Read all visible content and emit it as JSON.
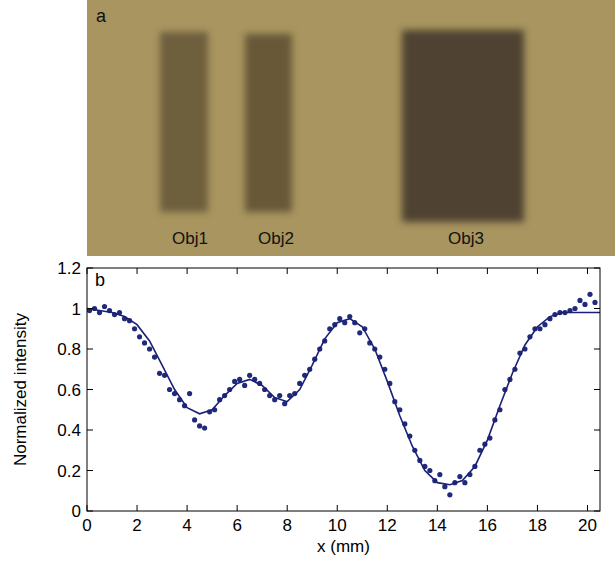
{
  "chart_data": [
    {
      "type": "image",
      "panel": "a",
      "color": "#a8955f",
      "labels": [
        "Obj1",
        "Obj2",
        "Obj3"
      ]
    },
    {
      "type": "scatter",
      "panel": "b",
      "xlabel": "x (mm)",
      "ylabel": "Normalized intensity",
      "xlim": [
        0,
        20.5
      ],
      "ylim": [
        0,
        1.2
      ],
      "xticks": [
        0,
        2,
        4,
        6,
        8,
        10,
        12,
        14,
        16,
        18,
        20
      ],
      "yticks": [
        0,
        0.2,
        0.4,
        0.6,
        0.8,
        1,
        1.2
      ],
      "series": [
        {
          "type": "scatter",
          "marker": "circle",
          "color": "#1f2a7a",
          "x": [
            0.1,
            0.3,
            0.5,
            0.7,
            0.9,
            1.1,
            1.3,
            1.5,
            1.7,
            1.9,
            2.1,
            2.3,
            2.5,
            2.7,
            2.9,
            3.1,
            3.3,
            3.5,
            3.7,
            3.9,
            4.1,
            4.3,
            4.5,
            4.7,
            4.9,
            5.1,
            5.3,
            5.5,
            5.7,
            5.9,
            6.1,
            6.3,
            6.5,
            6.7,
            6.9,
            7.1,
            7.3,
            7.5,
            7.7,
            7.9,
            8.1,
            8.3,
            8.5,
            8.7,
            8.9,
            9.1,
            9.3,
            9.5,
            9.7,
            9.9,
            10.1,
            10.3,
            10.5,
            10.7,
            10.9,
            11.1,
            11.3,
            11.5,
            11.7,
            11.9,
            12.1,
            12.3,
            12.5,
            12.7,
            12.9,
            13.1,
            13.3,
            13.5,
            13.7,
            13.9,
            14.1,
            14.3,
            14.5,
            14.7,
            14.9,
            15.1,
            15.3,
            15.5,
            15.7,
            15.9,
            16.1,
            16.3,
            16.5,
            16.7,
            16.9,
            17.1,
            17.3,
            17.5,
            17.7,
            17.9,
            18.1,
            18.3,
            18.5,
            18.7,
            18.9,
            19.1,
            19.3,
            19.5,
            19.7,
            19.9,
            20.1,
            20.3
          ],
          "values": [
            0.99,
            1.0,
            0.98,
            1.01,
            0.99,
            0.97,
            0.98,
            0.95,
            0.94,
            0.9,
            0.86,
            0.83,
            0.8,
            0.76,
            0.68,
            0.67,
            0.6,
            0.58,
            0.55,
            0.52,
            0.58,
            0.45,
            0.42,
            0.41,
            0.49,
            0.5,
            0.55,
            0.57,
            0.6,
            0.64,
            0.65,
            0.62,
            0.67,
            0.65,
            0.63,
            0.6,
            0.57,
            0.55,
            0.57,
            0.53,
            0.57,
            0.58,
            0.63,
            0.67,
            0.7,
            0.75,
            0.8,
            0.84,
            0.9,
            0.92,
            0.95,
            0.93,
            0.96,
            0.93,
            0.88,
            0.9,
            0.83,
            0.8,
            0.76,
            0.7,
            0.63,
            0.54,
            0.5,
            0.43,
            0.37,
            0.3,
            0.25,
            0.22,
            0.2,
            0.15,
            0.18,
            0.12,
            0.08,
            0.14,
            0.17,
            0.14,
            0.18,
            0.22,
            0.3,
            0.33,
            0.36,
            0.45,
            0.5,
            0.6,
            0.65,
            0.7,
            0.78,
            0.8,
            0.86,
            0.9,
            0.9,
            0.92,
            0.95,
            0.97,
            0.98,
            0.98,
            0.99,
            1.0,
            1.04,
            1.02,
            1.07,
            1.03
          ]
        },
        {
          "type": "line",
          "line_style": "solid",
          "color": "#1c1f78",
          "x": [
            0,
            0.5,
            1,
            1.5,
            2,
            2.5,
            3,
            3.5,
            4,
            4.5,
            5,
            5.5,
            6,
            6.5,
            7,
            7.5,
            8,
            8.5,
            9,
            9.5,
            10,
            10.5,
            11,
            11.5,
            12,
            12.5,
            13,
            13.5,
            14,
            14.5,
            15,
            15.5,
            16,
            16.5,
            17,
            17.5,
            18,
            18.5,
            19,
            19.5,
            20,
            20.5
          ],
          "values": [
            1.0,
            0.99,
            0.98,
            0.96,
            0.92,
            0.84,
            0.72,
            0.6,
            0.51,
            0.48,
            0.5,
            0.57,
            0.63,
            0.65,
            0.62,
            0.56,
            0.54,
            0.6,
            0.72,
            0.85,
            0.93,
            0.95,
            0.91,
            0.8,
            0.64,
            0.47,
            0.32,
            0.2,
            0.14,
            0.13,
            0.15,
            0.22,
            0.35,
            0.52,
            0.68,
            0.82,
            0.91,
            0.96,
            0.98,
            0.98,
            0.98,
            0.98
          ]
        }
      ]
    }
  ]
}
